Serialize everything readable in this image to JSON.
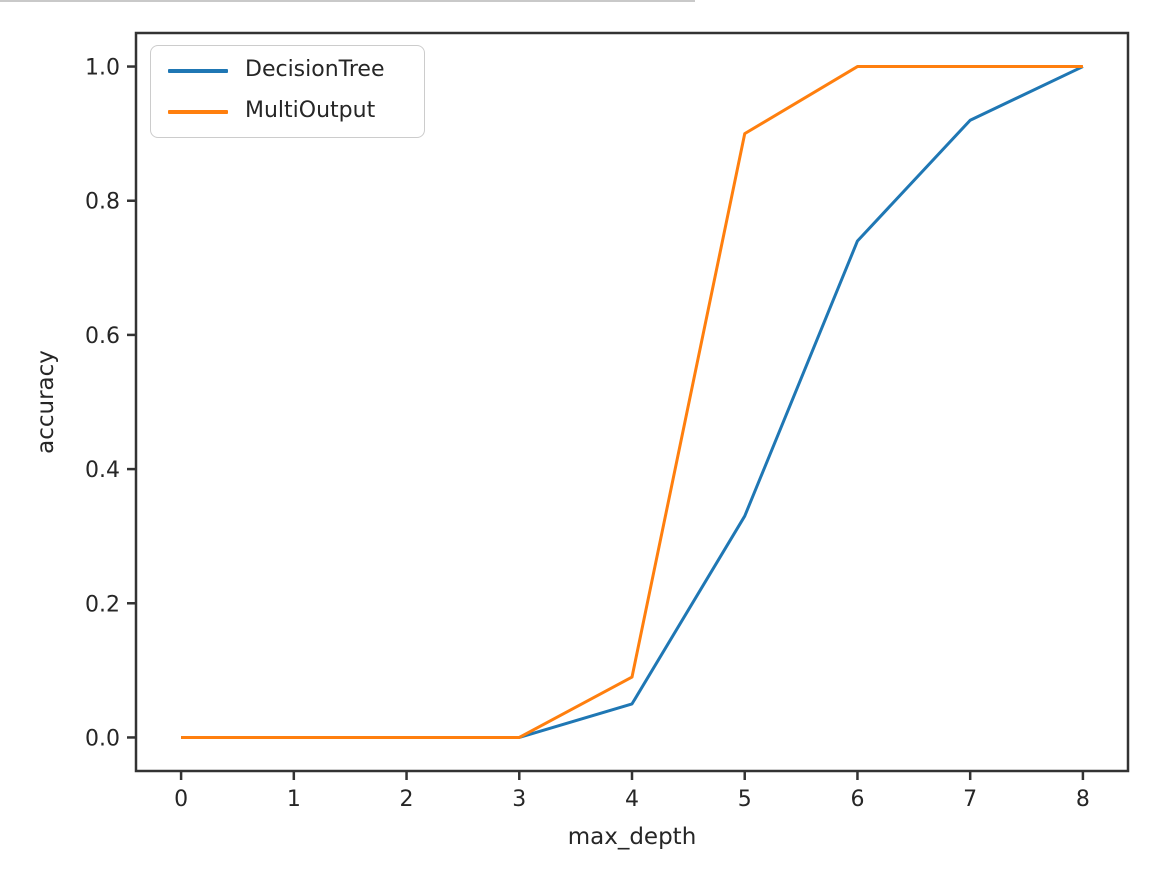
{
  "page": {
    "background": "#ffffff",
    "top_divider_color": "#c9c9c9"
  },
  "chart_data": {
    "type": "line",
    "title": "",
    "xlabel": "max_depth",
    "ylabel": "accuracy",
    "x": [
      0,
      1,
      2,
      3,
      4,
      5,
      6,
      7,
      8
    ],
    "series": [
      {
        "name": "DecisionTree",
        "color": "#1f77b4",
        "values": [
          0.0,
          0.0,
          0.0,
          0.0,
          0.05,
          0.33,
          0.74,
          0.92,
          1.0
        ]
      },
      {
        "name": "MultiOutput",
        "color": "#ff7f0e",
        "values": [
          0.0,
          0.0,
          0.0,
          0.0,
          0.09,
          0.9,
          1.0,
          1.0,
          1.0
        ]
      }
    ],
    "xlim": [
      -0.4,
      8.4
    ],
    "ylim": [
      -0.05,
      1.05
    ],
    "xticks": {
      "values": [
        0,
        1,
        2,
        3,
        4,
        5,
        6,
        7,
        8
      ],
      "labels": [
        "0",
        "1",
        "2",
        "3",
        "4",
        "5",
        "6",
        "7",
        "8"
      ]
    },
    "yticks": {
      "values": [
        0.0,
        0.2,
        0.4,
        0.6,
        0.8,
        1.0
      ],
      "labels": [
        "0.0",
        "0.2",
        "0.4",
        "0.6",
        "0.8",
        "1.0"
      ]
    },
    "grid": false,
    "legend": {
      "position": "upper left",
      "entries": [
        "DecisionTree",
        "MultiOutput"
      ]
    },
    "text_color": "#262626",
    "spine_color": "#333333"
  }
}
